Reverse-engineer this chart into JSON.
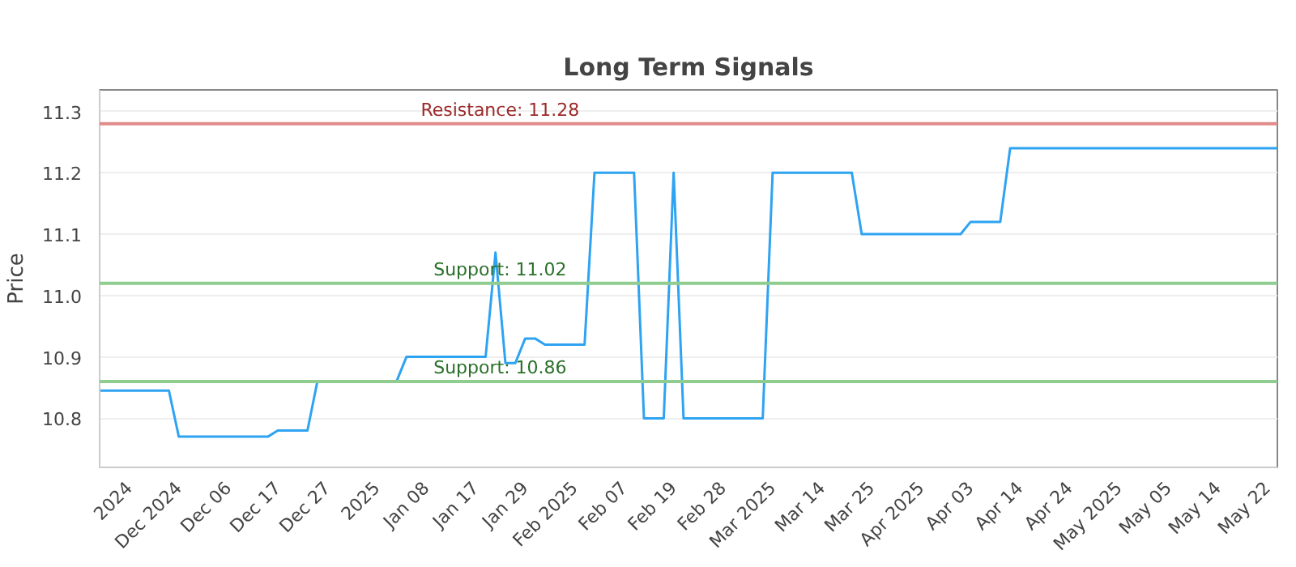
{
  "chart_data": {
    "type": "line",
    "title": "Long Term Signals",
    "ylabel": "Price",
    "categories": [
      null,
      null,
      null,
      "2024",
      null,
      null,
      null,
      null,
      "Dec 2024",
      null,
      null,
      null,
      null,
      "Dec 06",
      null,
      null,
      null,
      null,
      "Dec 17",
      null,
      null,
      null,
      null,
      "Dec 27",
      null,
      null,
      null,
      null,
      "2025",
      null,
      null,
      null,
      null,
      "Jan 08",
      null,
      null,
      null,
      null,
      "Jan 17",
      null,
      null,
      null,
      null,
      "Jan 29",
      null,
      null,
      null,
      null,
      "Feb 2025",
      null,
      null,
      null,
      null,
      "Feb 07",
      null,
      null,
      null,
      null,
      "Feb 19",
      null,
      null,
      null,
      null,
      "Feb 28",
      null,
      null,
      null,
      null,
      "Mar 2025",
      null,
      null,
      null,
      null,
      "Mar 14",
      null,
      null,
      null,
      null,
      "Mar 25",
      null,
      null,
      null,
      null,
      "Apr 2025",
      null,
      null,
      null,
      null,
      "Apr 03",
      null,
      null,
      null,
      null,
      "Apr 14",
      null,
      null,
      null,
      null,
      "Apr 24",
      null,
      null,
      null,
      null,
      "May 2025",
      null,
      null,
      null,
      null,
      "May 05",
      null,
      null,
      null,
      null,
      "May 14",
      null,
      null,
      null,
      null,
      "May 22",
      null
    ],
    "series": [
      {
        "color": "#2ea3f2",
        "values": [
          10.845,
          10.845,
          10.845,
          10.845,
          10.845,
          10.845,
          10.845,
          10.845,
          10.77,
          10.77,
          10.77,
          10.77,
          10.77,
          10.77,
          10.77,
          10.77,
          10.77,
          10.77,
          10.78,
          10.78,
          10.78,
          10.78,
          10.86,
          10.86,
          10.86,
          10.86,
          10.86,
          10.86,
          10.86,
          10.86,
          10.86,
          10.9,
          10.9,
          10.9,
          10.9,
          10.9,
          10.9,
          10.9,
          10.9,
          10.9,
          11.07,
          10.89,
          10.89,
          10.93,
          10.93,
          10.92,
          10.92,
          10.92,
          10.92,
          10.92,
          11.2,
          11.2,
          11.2,
          11.2,
          11.2,
          10.8,
          10.8,
          10.8,
          11.2,
          10.8,
          10.8,
          10.8,
          10.8,
          10.8,
          10.8,
          10.8,
          10.8,
          10.8,
          11.2,
          11.2,
          11.2,
          11.2,
          11.2,
          11.2,
          11.2,
          11.2,
          11.2,
          11.1,
          11.1,
          11.1,
          11.1,
          11.1,
          11.1,
          11.1,
          11.1,
          11.1,
          11.1,
          11.1,
          11.12,
          11.12,
          11.12,
          11.12,
          11.24,
          11.24,
          11.24,
          11.24,
          11.24,
          11.24,
          11.24,
          11.24,
          11.24,
          11.24,
          11.24,
          11.24,
          11.24,
          11.24,
          11.24,
          11.24,
          11.24,
          11.24,
          11.24,
          11.24,
          11.24,
          11.24,
          11.24,
          11.24,
          11.24,
          11.24,
          11.24,
          11.24
        ]
      }
    ],
    "ylim": [
      10.72,
      11.335
    ],
    "yticks": [
      {
        "value": 10.8,
        "label": "10.8"
      },
      {
        "value": 10.9,
        "label": "10.9"
      },
      {
        "value": 11.0,
        "label": "11.0"
      },
      {
        "value": 11.1,
        "label": "11.1"
      },
      {
        "value": 11.2,
        "label": "11.2"
      },
      {
        "value": 11.3,
        "label": "11.3"
      }
    ],
    "grid": "y",
    "marker": "none",
    "line_style": "solid",
    "ref_lines": [
      {
        "axis": "y",
        "value": 11.28,
        "label": "Resistance: 11.28",
        "color": "#e08a8a"
      },
      {
        "axis": "y",
        "value": 11.02,
        "label": "Support: 11.02",
        "color": "#8fcc8f"
      },
      {
        "axis": "y",
        "value": 10.86,
        "label": "Support: 10.86",
        "color": "#8fcc8f"
      }
    ]
  }
}
